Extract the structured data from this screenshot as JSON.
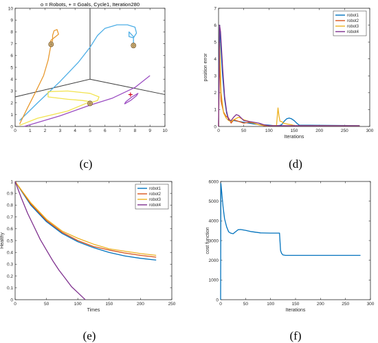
{
  "captions": [
    "(c)",
    "(d)",
    "(e)",
    "(f)"
  ],
  "chart_data": [
    {
      "type": "line",
      "title": "o = Robots, + = Goals, Cycle1, Iteration280",
      "xlabel": "",
      "ylabel": "",
      "xlim": [
        0,
        10
      ],
      "ylim": [
        0,
        10
      ],
      "xticks": [
        0,
        1,
        2,
        3,
        4,
        5,
        6,
        7,
        8,
        9,
        10
      ],
      "yticks": [
        0,
        1,
        2,
        3,
        4,
        5,
        6,
        7,
        8,
        9,
        10
      ],
      "partition_lines": [
        [
          [
            5,
            10
          ],
          [
            5,
            4
          ]
        ],
        [
          [
            0,
            2.5
          ],
          [
            5,
            4
          ]
        ],
        [
          [
            5,
            4
          ],
          [
            10,
            2.7
          ]
        ]
      ],
      "series": [
        {
          "color": "#4DAEE6",
          "x": [
            0.3,
            1.5,
            3,
            4.2,
            5,
            5.5,
            6,
            6.8,
            7.5,
            8,
            8.1,
            7.9,
            7.6,
            7.6,
            7.9,
            7.9
          ],
          "y": [
            0.5,
            2,
            3.8,
            5.4,
            6.7,
            7.7,
            8.3,
            8.6,
            8.6,
            8.4,
            7.9,
            7.5,
            7.6,
            8,
            7.6,
            6.9
          ]
        },
        {
          "color": "#E8992E",
          "x": [
            0.3,
            0.8,
            1.4,
            1.9,
            2.2,
            2.35,
            2.5,
            2.5,
            2.6,
            2.8,
            2.9,
            2.7,
            2.4,
            2.3
          ],
          "y": [
            0.2,
            1.5,
            3,
            4.3,
            5.6,
            6.6,
            7.3,
            7.7,
            8.1,
            8.2,
            7.8,
            7.6,
            7.3,
            6.95
          ]
        },
        {
          "color": "#F2E34D",
          "x": [
            0.3,
            1.5,
            3.5,
            5
          ],
          "y": [
            0.1,
            0.7,
            1.3,
            2.1
          ]
        },
        {
          "color": "#F2E34D",
          "x": [
            5,
            4.5,
            3.5,
            2.2,
            2.2,
            3.5,
            5,
            5.6,
            5.5,
            5.0
          ],
          "y": [
            2.1,
            2.2,
            2.3,
            2.5,
            2.95,
            3.0,
            2.8,
            2.5,
            2.2,
            2.0
          ]
        },
        {
          "color": "#9B4DC2",
          "x": [
            0.6,
            3,
            5,
            6.5,
            8,
            9
          ],
          "y": [
            0,
            0.9,
            1.8,
            2.4,
            3.3,
            4.3
          ]
        },
        {
          "color": "#9B4DC2",
          "x": [
            7.3,
            7.7,
            8.1,
            8.2,
            7.8,
            7.4,
            7.3
          ],
          "y": [
            1.9,
            2.2,
            2.6,
            2.8,
            2.5,
            2.1,
            1.9
          ]
        }
      ],
      "robots": [
        [
          2.4,
          6.95
        ],
        [
          7.9,
          6.85
        ],
        [
          5.0,
          1.95
        ]
      ],
      "goals": [
        [
          7.7,
          2.7
        ]
      ]
    },
    {
      "type": "line",
      "xlabel": "Iterations",
      "ylabel": "position error",
      "xlim": [
        0,
        300
      ],
      "ylim": [
        0,
        7
      ],
      "xticks": [
        0,
        50,
        100,
        150,
        200,
        250,
        300
      ],
      "yticks": [
        0,
        1,
        2,
        3,
        4,
        5,
        6,
        7
      ],
      "legend_position": "top-right",
      "series": [
        {
          "name": "robot1",
          "color": "#0072BD",
          "x": [
            0,
            2,
            4,
            8,
            12,
            16,
            20,
            25,
            30,
            40,
            50,
            60,
            70,
            80,
            90,
            100,
            110,
            120,
            125,
            130,
            135,
            140,
            145,
            150,
            155,
            160,
            280
          ],
          "y": [
            0,
            6.0,
            5.0,
            3.0,
            1.6,
            0.8,
            0.4,
            0.3,
            0.35,
            0.3,
            0.25,
            0.2,
            0.15,
            0.12,
            0.1,
            0.08,
            0.05,
            0.05,
            0.1,
            0.3,
            0.45,
            0.5,
            0.45,
            0.35,
            0.2,
            0.08,
            0.05
          ]
        },
        {
          "name": "robot2",
          "color": "#D95319",
          "x": [
            0,
            2,
            5,
            10,
            15,
            20,
            25,
            30,
            40,
            50,
            60,
            70,
            80,
            90,
            100,
            280
          ],
          "y": [
            0,
            4.0,
            1.5,
            0.85,
            0.6,
            0.5,
            0.2,
            0.4,
            0.3,
            0.2,
            0.25,
            0.2,
            0.1,
            0.05,
            0.04,
            0.04
          ]
        },
        {
          "name": "robot3",
          "color": "#EDB120",
          "x": [
            0,
            2,
            5,
            10,
            15,
            20,
            25,
            30,
            40,
            50,
            60,
            70,
            80,
            100,
            115,
            118,
            120,
            122,
            125,
            128,
            135,
            145,
            150,
            280
          ],
          "y": [
            0,
            5.0,
            2.0,
            0.8,
            0.5,
            0.35,
            0.3,
            0.4,
            0.55,
            0.4,
            0.3,
            0.2,
            0.1,
            0.05,
            0.05,
            1.1,
            0.6,
            0.3,
            0.3,
            0.2,
            0.15,
            0.1,
            0.05,
            0.04
          ]
        },
        {
          "name": "robot4",
          "color": "#7E2F8E",
          "x": [
            0,
            2,
            4,
            8,
            12,
            16,
            20,
            25,
            30,
            35,
            40,
            45,
            50,
            60,
            70,
            80,
            90,
            100,
            280
          ],
          "y": [
            0,
            6.0,
            5.6,
            3.5,
            1.8,
            0.9,
            0.4,
            0.35,
            0.55,
            0.7,
            0.65,
            0.5,
            0.35,
            0.3,
            0.25,
            0.2,
            0.1,
            0.05,
            0.04
          ]
        }
      ]
    },
    {
      "type": "line",
      "xlabel": "Times",
      "ylabel": "Healthy",
      "xlim": [
        0,
        250
      ],
      "ylim": [
        0,
        1
      ],
      "xticks": [
        0,
        50,
        100,
        150,
        200,
        250
      ],
      "yticks": [
        0,
        0.1,
        0.2,
        0.3,
        0.4,
        0.5,
        0.6,
        0.7,
        0.8,
        0.9,
        1
      ],
      "legend_position": "top-right",
      "series": [
        {
          "name": "robot1",
          "color": "#0072BD",
          "x": [
            0,
            25,
            50,
            75,
            100,
            125,
            150,
            175,
            200,
            225
          ],
          "y": [
            1.0,
            0.8,
            0.66,
            0.56,
            0.49,
            0.44,
            0.4,
            0.37,
            0.35,
            0.335
          ]
        },
        {
          "name": "robot2",
          "color": "#D95319",
          "x": [
            0,
            25,
            50,
            75,
            100,
            125,
            150,
            175,
            200,
            225
          ],
          "y": [
            1.0,
            0.81,
            0.67,
            0.57,
            0.5,
            0.45,
            0.42,
            0.395,
            0.375,
            0.36
          ]
        },
        {
          "name": "robot3",
          "color": "#EDB120",
          "x": [
            0,
            25,
            50,
            75,
            100,
            125,
            150,
            175,
            200,
            225
          ],
          "y": [
            1.0,
            0.82,
            0.68,
            0.58,
            0.52,
            0.47,
            0.43,
            0.41,
            0.39,
            0.375
          ]
        },
        {
          "name": "robot4",
          "color": "#7E2F8E",
          "x": [
            0,
            10,
            20,
            30,
            40,
            50,
            60,
            70,
            80,
            90,
            100,
            110,
            112
          ],
          "y": [
            1.0,
            0.86,
            0.73,
            0.62,
            0.51,
            0.42,
            0.33,
            0.25,
            0.18,
            0.11,
            0.06,
            0.01,
            0.0
          ]
        }
      ]
    },
    {
      "type": "line",
      "xlabel": "Iterations",
      "ylabel": "cost function",
      "xlim": [
        0,
        300
      ],
      "ylim": [
        0,
        6000
      ],
      "xticks": [
        0,
        50,
        100,
        150,
        200,
        250,
        300
      ],
      "yticks": [
        0,
        1000,
        2000,
        3000,
        4000,
        5000,
        6000
      ],
      "series": [
        {
          "color": "#0072BD",
          "x": [
            0,
            0.5,
            2,
            5,
            8,
            12,
            16,
            20,
            25,
            30,
            35,
            40,
            50,
            60,
            80,
            100,
            118,
            120,
            122,
            125,
            130,
            150,
            200,
            280
          ],
          "y": [
            0,
            5900,
            5500,
            4700,
            4100,
            3700,
            3450,
            3380,
            3350,
            3450,
            3550,
            3560,
            3520,
            3460,
            3390,
            3380,
            3380,
            2500,
            2350,
            2270,
            2250,
            2250,
            2250,
            2250
          ]
        }
      ]
    }
  ]
}
